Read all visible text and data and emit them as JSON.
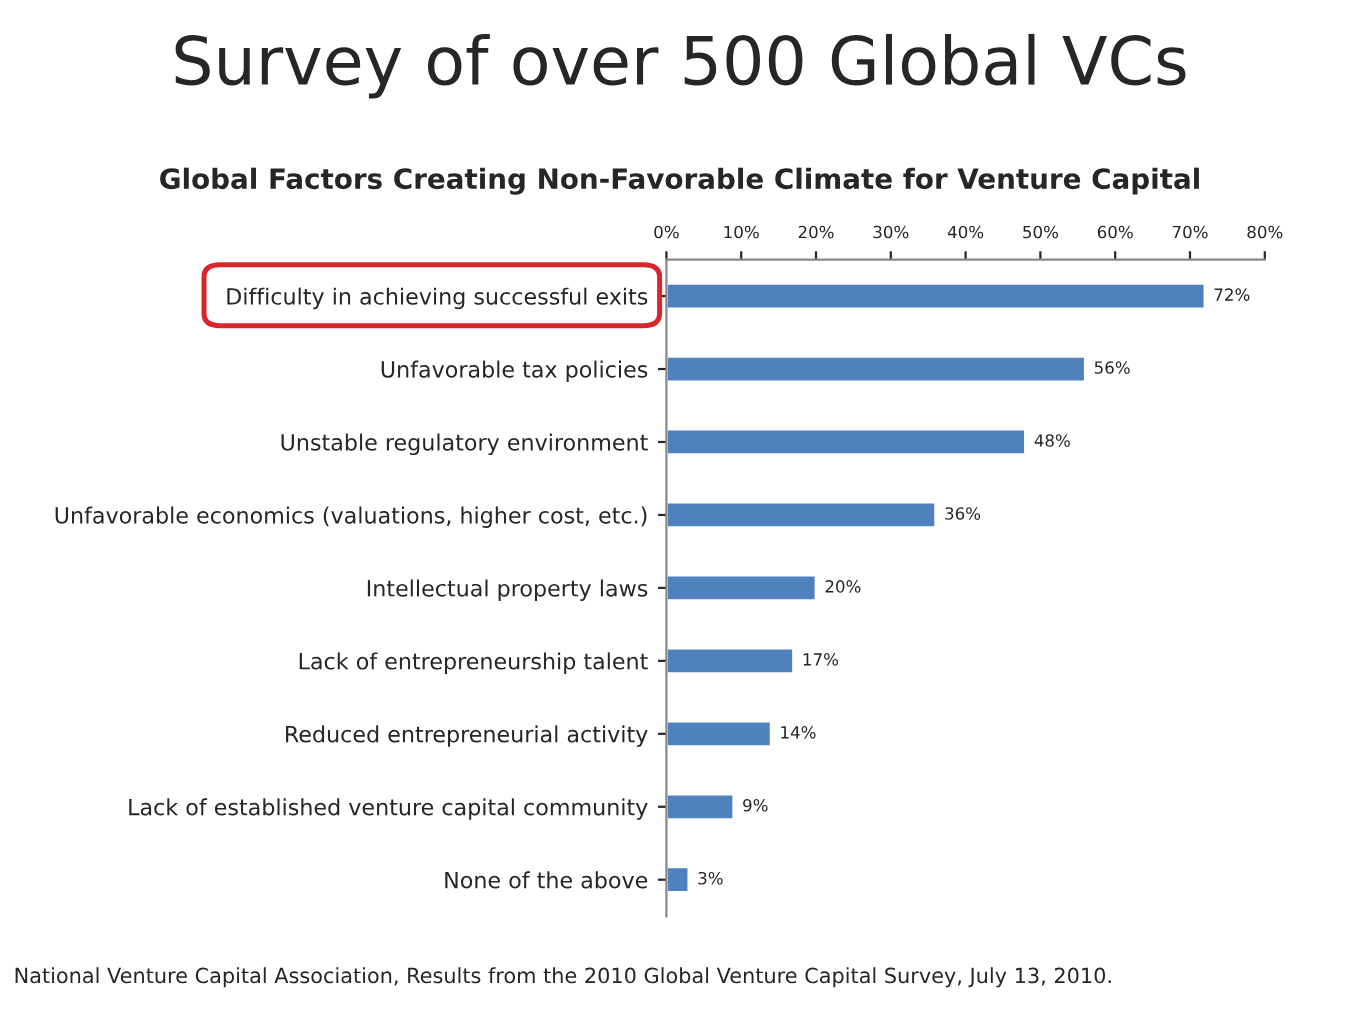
{
  "chart_data": {
    "type": "bar",
    "orientation": "horizontal",
    "title": "Survey of over 500 Global VCs",
    "subtitle": "Global Factors Creating Non-Favorable Climate for Venture Capital",
    "categories": [
      "Difficulty in achieving successful exits",
      "Unfavorable tax policies",
      "Unstable regulatory environment",
      "Unfavorable economics (valuations, higher cost, etc.)",
      "Intellectual property laws",
      "Lack of entrepreneurship talent",
      "Reduced entrepreneurial activity",
      "Lack of established venture capital community",
      "None of the above"
    ],
    "values": [
      72,
      56,
      48,
      36,
      20,
      17,
      14,
      9,
      3
    ],
    "value_labels": [
      "72%",
      "56%",
      "48%",
      "36%",
      "20%",
      "17%",
      "14%",
      "9%",
      "3%"
    ],
    "color": "#4f81bd",
    "xlim": [
      0,
      80
    ],
    "xticks": [
      {
        "value": 0,
        "label": "0%"
      },
      {
        "value": 10,
        "label": "10%"
      },
      {
        "value": 20,
        "label": "20%"
      },
      {
        "value": 30,
        "label": "30%"
      },
      {
        "value": 40,
        "label": "40%"
      },
      {
        "value": 50,
        "label": "50%"
      },
      {
        "value": 60,
        "label": "60%"
      },
      {
        "value": 70,
        "label": "70%"
      },
      {
        "value": 80,
        "label": "80%"
      }
    ],
    "grid": false,
    "legend": false,
    "annotations": [
      "National Venture Capital Association, Results from the 2010 Global Venture Capital Survey, July 13, 2010."
    ]
  }
}
